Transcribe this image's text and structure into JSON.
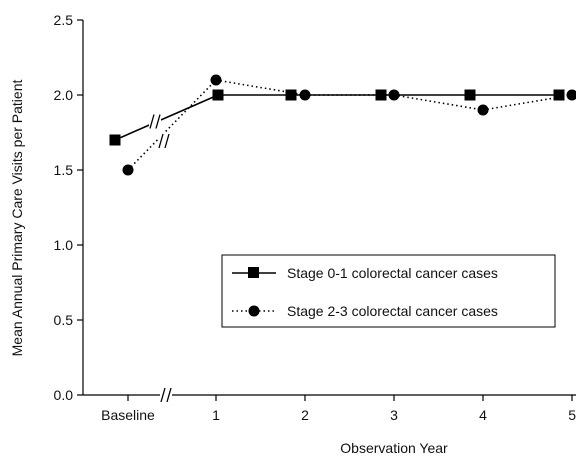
{
  "chart_data": {
    "type": "line",
    "title": "",
    "xlabel": "Observation Year",
    "ylabel": "Mean Annual Primary Care Visits per Patient",
    "x_categories": [
      "Baseline",
      "1",
      "2",
      "3",
      "4",
      "5"
    ],
    "ylim": [
      0.0,
      2.5
    ],
    "y_ticks": [
      "0.0",
      "0.5",
      "1.0",
      "1.5",
      "2.0",
      "2.5"
    ],
    "axis_break": "between Baseline and 1",
    "grid": false,
    "legend_position": "right-center",
    "series": [
      {
        "name": "Stage 0-1 colorectal cancer cases",
        "marker": "square",
        "line_style": "solid",
        "color": "#000000",
        "values": [
          1.7,
          2.0,
          2.0,
          2.0,
          2.0,
          2.0
        ]
      },
      {
        "name": "Stage 2-3 colorectal cancer cases",
        "marker": "circle",
        "line_style": "dotted",
        "color": "#000000",
        "values": [
          1.5,
          2.1,
          2.0,
          2.0,
          1.9,
          2.0
        ]
      }
    ]
  }
}
